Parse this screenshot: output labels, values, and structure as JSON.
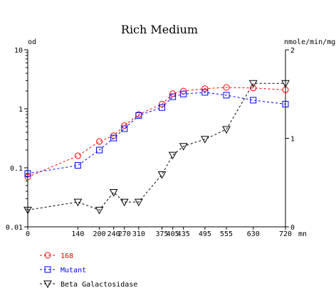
{
  "chart_data": {
    "type": "line",
    "title": "Rich Medium",
    "xlabel": "mn",
    "ylabel_left": "od",
    "ylabel_right": "nmole/min/mg",
    "x_ticks": [
      0,
      140,
      200,
      240,
      270,
      310,
      375,
      405,
      435,
      495,
      555,
      630,
      720
    ],
    "y_left_scale": "log",
    "y_left_ticks": [
      0.01,
      0.1,
      1,
      10
    ],
    "y_left_tick_labels": [
      "0.01",
      "0.1",
      "1",
      "10"
    ],
    "y_right_ticks": [
      0,
      1,
      2
    ],
    "xlim": [
      0,
      720
    ],
    "ylim_left": [
      0.01,
      10
    ],
    "ylim_right": [
      0,
      2
    ],
    "grid": false,
    "legend_position": "bottom-left",
    "series": [
      {
        "name": "168",
        "axis": "left",
        "color": "#ff0000",
        "marker": "circle",
        "x": [
          0,
          140,
          200,
          240,
          270,
          310,
          375,
          405,
          435,
          495,
          555,
          630,
          720
        ],
        "y": [
          0.07,
          0.16,
          0.28,
          0.35,
          0.52,
          0.8,
          1.2,
          1.8,
          2.0,
          2.2,
          2.3,
          2.25,
          2.1
        ]
      },
      {
        "name": "Mutant",
        "axis": "left",
        "color": "#0000ff",
        "marker": "square",
        "x": [
          0,
          140,
          200,
          240,
          270,
          310,
          375,
          405,
          435,
          495,
          555,
          630,
          720
        ],
        "y": [
          0.08,
          0.11,
          0.2,
          0.32,
          0.46,
          0.77,
          1.05,
          1.6,
          1.78,
          1.9,
          1.7,
          1.4,
          1.2
        ]
      },
      {
        "name": "Beta Galactosidase",
        "axis": "right",
        "color": "#000000",
        "marker": "triangle-down",
        "x": [
          0,
          140,
          200,
          240,
          270,
          310,
          375,
          405,
          435,
          495,
          555,
          630,
          720
        ],
        "y": [
          0.19,
          0.28,
          0.19,
          0.39,
          0.28,
          0.28,
          0.59,
          0.81,
          0.91,
          0.99,
          1.1,
          1.62,
          1.62
        ]
      }
    ]
  }
}
